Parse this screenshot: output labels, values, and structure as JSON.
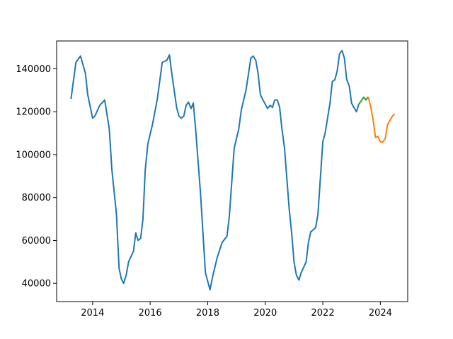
{
  "chart_data": {
    "type": "line",
    "title": "",
    "xlabel": "",
    "ylabel": "",
    "xlim": [
      2012.75,
      2024.95
    ],
    "ylim": [
      31500,
      153000
    ],
    "x_ticks": [
      2014,
      2016,
      2018,
      2020,
      2022,
      2024
    ],
    "x_tick_labels": [
      "2014",
      "2016",
      "2018",
      "2020",
      "2022",
      "2024"
    ],
    "y_ticks": [
      40000,
      60000,
      80000,
      100000,
      120000,
      140000
    ],
    "y_tick_labels": [
      "40000",
      "60000",
      "80000",
      "100000",
      "120000",
      "140000"
    ],
    "grid": false,
    "series": [
      {
        "color": "#1f77b4",
        "points": [
          [
            2013.25,
            126000
          ],
          [
            2013.42,
            143000
          ],
          [
            2013.58,
            146000
          ],
          [
            2013.75,
            138000
          ],
          [
            2013.83,
            128000
          ],
          [
            2014.0,
            117000
          ],
          [
            2014.08,
            118000
          ],
          [
            2014.25,
            123000
          ],
          [
            2014.42,
            125500
          ],
          [
            2014.58,
            112000
          ],
          [
            2014.67,
            93000
          ],
          [
            2014.83,
            72000
          ],
          [
            2014.92,
            47000
          ],
          [
            2015.0,
            42000
          ],
          [
            2015.08,
            40000
          ],
          [
            2015.17,
            44000
          ],
          [
            2015.25,
            50000
          ],
          [
            2015.42,
            55000
          ],
          [
            2015.5,
            63500
          ],
          [
            2015.58,
            60000
          ],
          [
            2015.67,
            61000
          ],
          [
            2015.75,
            70000
          ],
          [
            2015.83,
            93000
          ],
          [
            2015.92,
            105000
          ],
          [
            2016.08,
            114000
          ],
          [
            2016.25,
            126000
          ],
          [
            2016.42,
            143000
          ],
          [
            2016.58,
            144000
          ],
          [
            2016.67,
            146500
          ],
          [
            2016.75,
            138000
          ],
          [
            2016.92,
            122000
          ],
          [
            2017.0,
            118000
          ],
          [
            2017.08,
            117000
          ],
          [
            2017.17,
            118000
          ],
          [
            2017.25,
            123000
          ],
          [
            2017.33,
            124500
          ],
          [
            2017.42,
            121500
          ],
          [
            2017.5,
            124000
          ],
          [
            2017.58,
            112000
          ],
          [
            2017.75,
            82000
          ],
          [
            2017.92,
            45000
          ],
          [
            2018.0,
            41000
          ],
          [
            2018.08,
            37000
          ],
          [
            2018.17,
            43000
          ],
          [
            2018.33,
            52000
          ],
          [
            2018.5,
            59000
          ],
          [
            2018.67,
            62000
          ],
          [
            2018.75,
            71000
          ],
          [
            2018.92,
            103000
          ],
          [
            2019.08,
            112000
          ],
          [
            2019.17,
            121000
          ],
          [
            2019.33,
            130000
          ],
          [
            2019.5,
            145000
          ],
          [
            2019.58,
            146000
          ],
          [
            2019.67,
            144000
          ],
          [
            2019.75,
            138000
          ],
          [
            2019.83,
            128000
          ],
          [
            2019.92,
            125500
          ],
          [
            2020.0,
            123500
          ],
          [
            2020.08,
            121500
          ],
          [
            2020.17,
            123000
          ],
          [
            2020.25,
            122000
          ],
          [
            2020.33,
            125500
          ],
          [
            2020.42,
            125500
          ],
          [
            2020.5,
            122000
          ],
          [
            2020.58,
            112000
          ],
          [
            2020.67,
            103000
          ],
          [
            2020.83,
            75000
          ],
          [
            2020.92,
            63000
          ],
          [
            2021.0,
            50000
          ],
          [
            2021.08,
            44000
          ],
          [
            2021.17,
            41500
          ],
          [
            2021.25,
            45000
          ],
          [
            2021.42,
            50000
          ],
          [
            2021.5,
            59000
          ],
          [
            2021.58,
            64000
          ],
          [
            2021.67,
            65000
          ],
          [
            2021.75,
            66000
          ],
          [
            2021.83,
            72000
          ],
          [
            2021.92,
            90000
          ],
          [
            2022.0,
            106000
          ],
          [
            2022.08,
            110000
          ],
          [
            2022.25,
            124000
          ],
          [
            2022.33,
            134000
          ],
          [
            2022.42,
            135000
          ],
          [
            2022.5,
            139000
          ],
          [
            2022.58,
            147000
          ],
          [
            2022.67,
            148500
          ],
          [
            2022.75,
            145000
          ],
          [
            2022.83,
            135000
          ],
          [
            2022.92,
            132000
          ],
          [
            2023.0,
            124000
          ],
          [
            2023.08,
            122000
          ],
          [
            2023.17,
            120000
          ],
          [
            2023.25,
            123500
          ]
        ]
      },
      {
        "color": "#2ca02c",
        "points": [
          [
            2023.25,
            123500
          ],
          [
            2023.33,
            125000
          ],
          [
            2023.42,
            126800
          ],
          [
            2023.5,
            125500
          ],
          [
            2023.58,
            127000
          ]
        ]
      },
      {
        "color": "#ff7f0e",
        "points": [
          [
            2023.58,
            127000
          ],
          [
            2023.67,
            122000
          ],
          [
            2023.75,
            116000
          ],
          [
            2023.83,
            108000
          ],
          [
            2023.92,
            108500
          ],
          [
            2024.0,
            106000
          ],
          [
            2024.08,
            105800
          ],
          [
            2024.17,
            107500
          ],
          [
            2024.25,
            114000
          ],
          [
            2024.33,
            116000
          ],
          [
            2024.42,
            118000
          ],
          [
            2024.5,
            119000
          ]
        ]
      }
    ]
  }
}
